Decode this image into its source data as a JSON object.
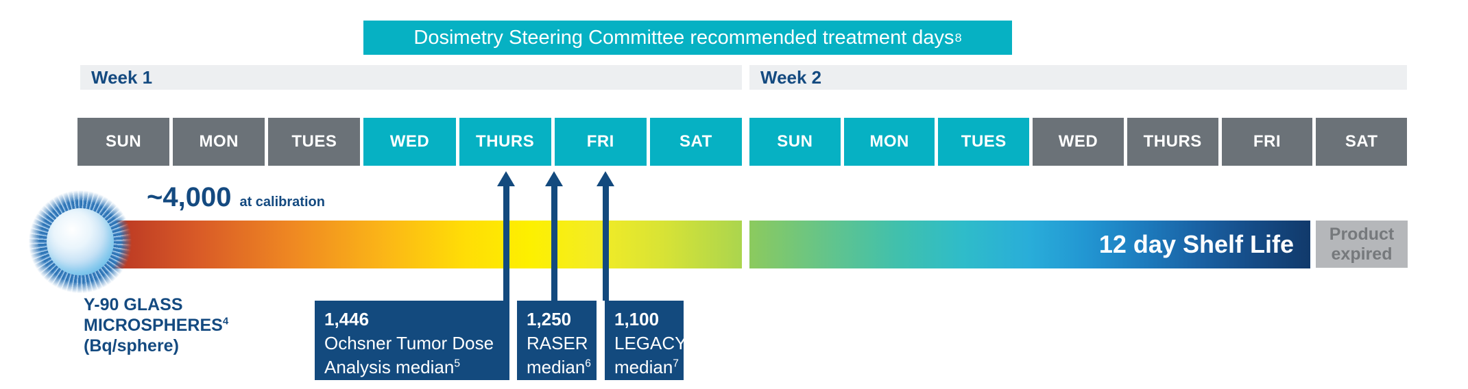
{
  "banner": {
    "text": "Dosimetry Steering Committee recommended treatment days",
    "footnote": "8"
  },
  "week1": {
    "label": "Week 1"
  },
  "week2": {
    "label": "Week 2"
  },
  "days": {
    "week1": [
      {
        "label": "SUN",
        "state": "non-treatment"
      },
      {
        "label": "MON",
        "state": "non-treatment"
      },
      {
        "label": "TUES",
        "state": "non-treatment"
      },
      {
        "label": "WED",
        "state": "recommended"
      },
      {
        "label": "THURS",
        "state": "recommended"
      },
      {
        "label": "FRI",
        "state": "recommended"
      },
      {
        "label": "SAT",
        "state": "recommended"
      }
    ],
    "week2": [
      {
        "label": "SUN",
        "state": "recommended"
      },
      {
        "label": "MON",
        "state": "recommended"
      },
      {
        "label": "TUES",
        "state": "recommended"
      },
      {
        "label": "WED",
        "state": "non-treatment"
      },
      {
        "label": "THURS",
        "state": "non-treatment"
      },
      {
        "label": "FRI",
        "state": "non-treatment"
      },
      {
        "label": "SAT",
        "state": "non-treatment"
      }
    ]
  },
  "calibration": {
    "value": "~4,000",
    "label": "at calibration"
  },
  "shelf_life": {
    "label": "12 day Shelf Life"
  },
  "expired": {
    "line1": "Product",
    "line2": "expired"
  },
  "y_axis": {
    "line1": "Y-90 GLASS",
    "line2": "MICROSPHERES",
    "line2_footnote": "4",
    "line3": "(Bq/sphere)"
  },
  "annotations": [
    {
      "value": "1,446",
      "line2": "Ochsner Tumor Dose",
      "line3": "Analysis median",
      "footnote": "5",
      "points_to": "Week 1 THURS"
    },
    {
      "value": "1,250",
      "line2": "RASER",
      "line3": "median",
      "footnote": "6",
      "points_to": "Week 1 THURS/FRI boundary"
    },
    {
      "value": "1,100",
      "line2": "LEGACY",
      "line3": "median",
      "footnote": "7",
      "points_to": "Week 1 FRI"
    }
  ],
  "colors": {
    "teal": "#06b1c3",
    "navy": "#144a80",
    "day_gray": "#6b7278",
    "week_bar_gray": "#edeff1",
    "expired_bg": "#b5b7ba",
    "expired_text": "#76797c",
    "gradient_start_red": "#9e2a1d",
    "gradient_mid_yellow": "#fdf000",
    "gradient_end_navy": "#113a6b"
  }
}
